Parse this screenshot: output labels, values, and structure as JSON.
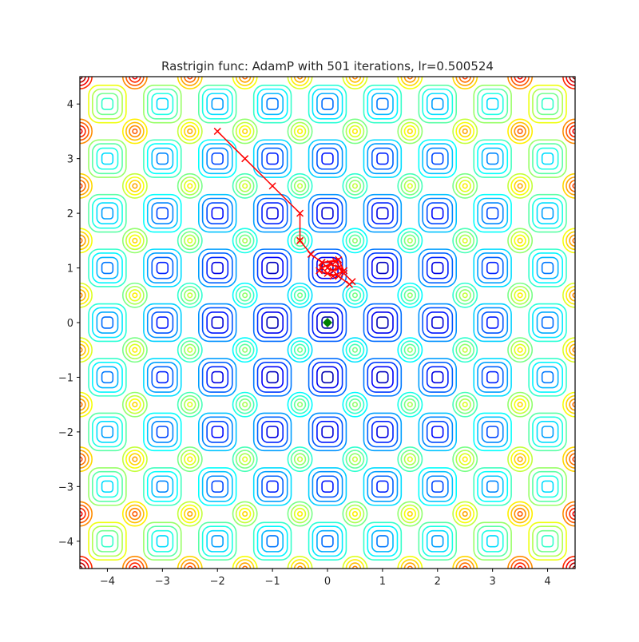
{
  "chart_data": {
    "type": "contour-path",
    "title": "Rastrigin func: AdamP with 501 iterations, lr=0.500524",
    "xlim": [
      -4.5,
      4.5
    ],
    "ylim": [
      -4.5,
      4.5
    ],
    "xticks": [
      {
        "value": -4,
        "label": "−4"
      },
      {
        "value": -3,
        "label": "−3"
      },
      {
        "value": -2,
        "label": "−2"
      },
      {
        "value": -1,
        "label": "−1"
      },
      0,
      1,
      2,
      3,
      4
    ],
    "yticks": [
      {
        "value": -4,
        "label": "−4"
      },
      {
        "value": -3,
        "label": "−3"
      },
      {
        "value": -2,
        "label": "−2"
      },
      {
        "value": -1,
        "label": "−1"
      },
      0,
      1,
      2,
      3,
      4
    ],
    "series": [
      {
        "color": "#ff0000",
        "x": [
          -2,
          -1.5,
          -1,
          -0.5,
          -0.5,
          -0.3,
          -0.1,
          0.2,
          0.3,
          0.1,
          -0.15,
          -0.1,
          0.15,
          0.3,
          0.45,
          0.4,
          0.2,
          0.0,
          -0.1,
          0.05,
          0.2,
          0.1,
          0.0
        ],
        "y": [
          3.5,
          3.0,
          2.5,
          2.0,
          1.5,
          1.25,
          1.1,
          1.15,
          0.95,
          0.85,
          0.95,
          1.1,
          1.12,
          0.9,
          0.75,
          0.7,
          0.85,
          0.9,
          1.0,
          1.08,
          1.0,
          0.95,
          1.0
        ]
      }
    ],
    "minimum": {
      "x": 0,
      "y": 0,
      "color": "#008000"
    }
  }
}
